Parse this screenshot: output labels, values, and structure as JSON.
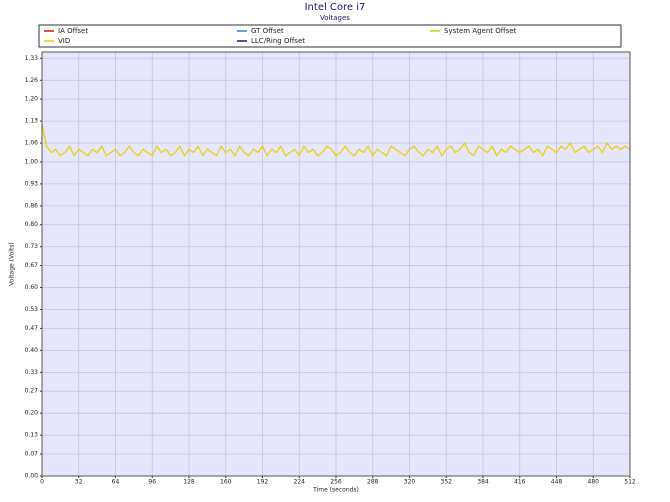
{
  "chart_data": {
    "type": "line",
    "title": "Intel Core i7",
    "subtitle": "Voltages",
    "x_label": "Time (seconds)",
    "y_label": "Voltage (Volts)",
    "legend": [
      {
        "name": "IA Offset",
        "color": "#e01010"
      },
      {
        "name": "GT Offset",
        "color": "#2f7fd8"
      },
      {
        "name": "System Agent Offset",
        "color": "#c8d800"
      },
      {
        "name": "VID",
        "color": "#f0cc00"
      },
      {
        "name": "LLC/Ring Offset",
        "color": "#1a1a8c"
      }
    ],
    "grid": true,
    "xlim": [
      0,
      512
    ],
    "ylim": [
      0,
      1.35
    ],
    "xticks": [
      0,
      32,
      64,
      96,
      128,
      160,
      192,
      224,
      256,
      288,
      320,
      352,
      384,
      416,
      448,
      480,
      512
    ],
    "yticks": [
      {
        "value": 0,
        "label": "0.00"
      },
      0.07,
      0.13,
      {
        "value": 0.2,
        "label": "0.20"
      },
      0.27,
      0.33,
      {
        "value": 0.4,
        "label": "0.40"
      },
      0.47,
      0.53,
      {
        "value": 0.6,
        "label": "0.60"
      },
      0.67,
      0.73,
      {
        "value": 0.8,
        "label": "0.80"
      },
      0.86,
      0.93,
      {
        "value": 1,
        "label": "1.00"
      },
      1.06,
      1.13,
      {
        "value": 1.2,
        "label": "1.20"
      },
      1.26,
      1.33
    ],
    "x": [
      0,
      4,
      8,
      12,
      16,
      20,
      24,
      28,
      32,
      36,
      40,
      44,
      48,
      52,
      56,
      60,
      64,
      68,
      72,
      76,
      80,
      84,
      88,
      92,
      96,
      100,
      104,
      108,
      112,
      116,
      120,
      124,
      128,
      132,
      136,
      140,
      144,
      148,
      152,
      156,
      160,
      164,
      168,
      172,
      176,
      180,
      184,
      188,
      192,
      196,
      200,
      204,
      208,
      212,
      216,
      220,
      224,
      228,
      232,
      236,
      240,
      244,
      248,
      252,
      256,
      260,
      264,
      268,
      272,
      276,
      280,
      284,
      288,
      292,
      296,
      300,
      304,
      308,
      312,
      316,
      320,
      324,
      328,
      332,
      336,
      340,
      344,
      348,
      352,
      356,
      360,
      364,
      368,
      372,
      376,
      380,
      384,
      388,
      392,
      396,
      400,
      404,
      408,
      412,
      416,
      420,
      424,
      428,
      432,
      436,
      440,
      444,
      448,
      452,
      456,
      460,
      464,
      468,
      472,
      476,
      480,
      484,
      488,
      492,
      496,
      500,
      504,
      508,
      512
    ],
    "series": [
      {
        "color": "#f0cc00",
        "values": [
          1.12,
          1.05,
          1.03,
          1.04,
          1.02,
          1.03,
          1.05,
          1.02,
          1.04,
          1.03,
          1.02,
          1.04,
          1.03,
          1.05,
          1.02,
          1.03,
          1.04,
          1.02,
          1.03,
          1.05,
          1.03,
          1.02,
          1.04,
          1.03,
          1.02,
          1.05,
          1.03,
          1.04,
          1.02,
          1.03,
          1.05,
          1.02,
          1.04,
          1.03,
          1.05,
          1.02,
          1.04,
          1.03,
          1.02,
          1.05,
          1.03,
          1.04,
          1.02,
          1.05,
          1.03,
          1.02,
          1.04,
          1.03,
          1.05,
          1.02,
          1.04,
          1.03,
          1.05,
          1.02,
          1.03,
          1.04,
          1.02,
          1.05,
          1.03,
          1.04,
          1.02,
          1.03,
          1.05,
          1.04,
          1.02,
          1.03,
          1.05,
          1.03,
          1.02,
          1.04,
          1.03,
          1.05,
          1.02,
          1.04,
          1.03,
          1.02,
          1.05,
          1.04,
          1.03,
          1.02,
          1.04,
          1.05,
          1.03,
          1.02,
          1.04,
          1.03,
          1.05,
          1.02,
          1.04,
          1.05,
          1.03,
          1.04,
          1.06,
          1.03,
          1.02,
          1.05,
          1.04,
          1.03,
          1.05,
          1.02,
          1.04,
          1.03,
          1.05,
          1.04,
          1.03,
          1.04,
          1.05,
          1.03,
          1.04,
          1.02,
          1.05,
          1.04,
          1.03,
          1.05,
          1.04,
          1.06,
          1.03,
          1.04,
          1.05,
          1.03,
          1.04,
          1.05,
          1.03,
          1.06,
          1.04,
          1.05,
          1.04,
          1.05,
          1.04
        ]
      }
    ]
  }
}
